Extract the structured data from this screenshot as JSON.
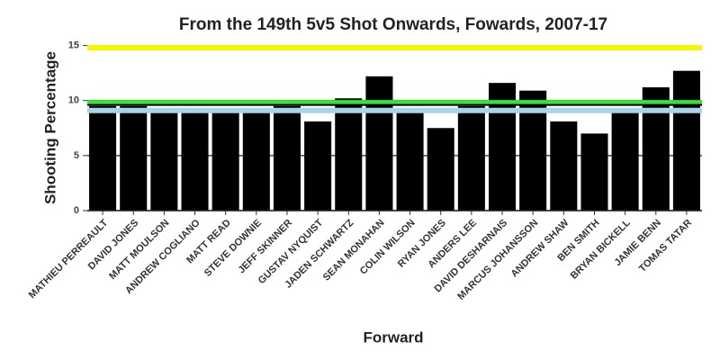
{
  "chart_data": {
    "type": "bar",
    "title": "From the 149th 5v5 Shot Onwards, Fowards, 2007-17",
    "x_label": "Forward",
    "y_label": "Shooting Percentage",
    "categories": [
      "MATHIEU PERREAULT",
      "DAVID JONES",
      "MATT MOULSON",
      "ANDREW COGLIANO",
      "MATT READ",
      "STEVE DOWNIE",
      "JEFF SKINNER",
      "GUSTAV NYQUIST",
      "JADEN SCHWARTZ",
      "SEAN MONAHAN",
      "COLIN WILSON",
      "RYAN JONES",
      "ANDERS LEE",
      "DAVID DESHARNAIS",
      "MARCUS JOHANSSON",
      "ANDREW SHAW",
      "BEN SMITH",
      "BRYAN BICKELL",
      "JAMIE BENN",
      "TOMAS TATAR"
    ],
    "values": [
      9.5,
      9.5,
      9.0,
      9.0,
      9.0,
      9.0,
      9.5,
      8.1,
      10.2,
      12.2,
      9.0,
      7.5,
      9.5,
      11.6,
      10.9,
      8.1,
      7.0,
      9.0,
      11.2,
      12.7
    ],
    "color": "#000000",
    "ylim": [
      0,
      15.7
    ],
    "yticks": [
      0,
      5,
      10,
      15
    ],
    "grid": true,
    "reference_lines": [
      {
        "value": 14.8,
        "color": "#f5f500"
      },
      {
        "value": 9.8,
        "color": "#33e633"
      },
      {
        "value": 9.1,
        "color": "#a9d4e8"
      },
      {
        "value": 9.6,
        "color": "#000000"
      }
    ]
  }
}
